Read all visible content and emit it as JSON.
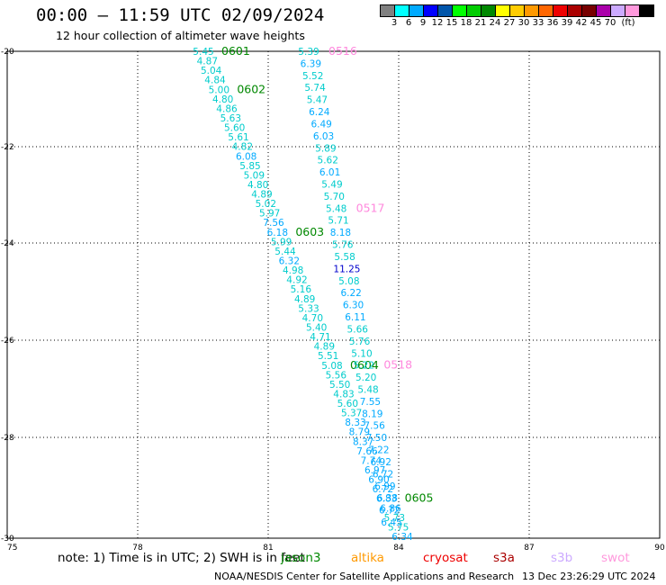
{
  "header": {
    "title": "00:00 – 11:59 UTC 02/09/2024",
    "subtitle": "12 hour collection of altimeter wave heights"
  },
  "legend": {
    "unit": "(ft)",
    "colors": [
      "#808080",
      "#00ffff",
      "#00aaff",
      "#0000ff",
      "#0055aa",
      "#00ff00",
      "#00cc00",
      "#008800",
      "#ffff00",
      "#ffcc00",
      "#ff9900",
      "#ff6600",
      "#ee0000",
      "#aa0000",
      "#770000",
      "#aa00aa",
      "#ccaaff",
      "#ff99dd",
      "#000000"
    ],
    "labels": [
      "3",
      "6",
      "9",
      "12",
      "15",
      "18",
      "21",
      "24",
      "27",
      "30",
      "33",
      "36",
      "39",
      "42",
      "45",
      "70"
    ]
  },
  "axes": {
    "x_ticks": [
      "75",
      "78",
      "81",
      "84",
      "87",
      "90"
    ],
    "y_ticks": [
      "-20",
      "-22",
      "-24",
      "-26",
      "-28",
      "-30"
    ]
  },
  "track_a": {
    "values": [
      "5.45",
      "4.87",
      "5.04",
      "4.84",
      "5.00",
      "4.80",
      "4.86",
      "5.63",
      "5.60",
      "5.61",
      "4.82",
      "6.08",
      "5.85",
      "5.09",
      "4.80",
      "4.89",
      "5.02",
      "5.97",
      "7.56",
      "6.18",
      "5.99",
      "5.44",
      "6.32",
      "4.98",
      "4.92",
      "5.16",
      "4.89",
      "5.33",
      "4.70",
      "5.40",
      "4.71",
      "4.89",
      "5.51",
      "5.08",
      "5.56",
      "5.50",
      "4.83",
      "5.60",
      "5.37",
      "8.33",
      "8.79",
      "8.37",
      "7.66",
      "7.74",
      "6.97",
      "6.90",
      "6.72",
      "6.83",
      "6.86",
      "5.73",
      "5.75",
      "6.34"
    ],
    "labels": [
      {
        "text": "0601",
        "idx": 0
      },
      {
        "text": "0602",
        "idx": 4
      },
      {
        "text": "0603",
        "idx": 19
      },
      {
        "text": "0604",
        "idx": 33
      },
      {
        "text": "0605",
        "idx": 47
      }
    ]
  },
  "track_b": {
    "values": [
      "5.39",
      "6.39",
      "5.52",
      "5.74",
      "5.47",
      "6.24",
      "6.49",
      "6.03",
      "5.89",
      "5.62",
      "6.01",
      "5.49",
      "5.70",
      "5.48",
      "5.71",
      "8.18",
      "5.76",
      "5.58",
      "11.25",
      "5.08",
      "6.22",
      "6.30",
      "6.11",
      "5.66",
      "5.76",
      "5.10",
      "5.22",
      "5.20",
      "5.48",
      "7.55",
      "8.19",
      "7.56",
      "7.50",
      "7.22",
      "6.92",
      "6.72",
      "6.99",
      "6.38",
      "6.72",
      "6.45"
    ],
    "labels": [
      {
        "text": "0516",
        "idx": 0
      },
      {
        "text": "0517",
        "idx": 13
      },
      {
        "text": "0518",
        "idx": 26
      }
    ]
  },
  "footer": {
    "note": "note:  1) Time is in UTC; 2) SWH is in feet",
    "missions": [
      {
        "name": "jason3",
        "color": "#008800"
      },
      {
        "name": "altika",
        "color": "#ff9900"
      },
      {
        "name": "cryosat",
        "color": "#ee0000"
      },
      {
        "name": "s3a",
        "color": "#aa0000"
      },
      {
        "name": "s3b",
        "color": "#ccaaff"
      },
      {
        "name": "swot",
        "color": "#ff99dd"
      }
    ],
    "credit": "NOAA/NESDIS Center for Satellite Applications and Research",
    "date": "13 Dec 23:26:29 UTC 2024"
  }
}
